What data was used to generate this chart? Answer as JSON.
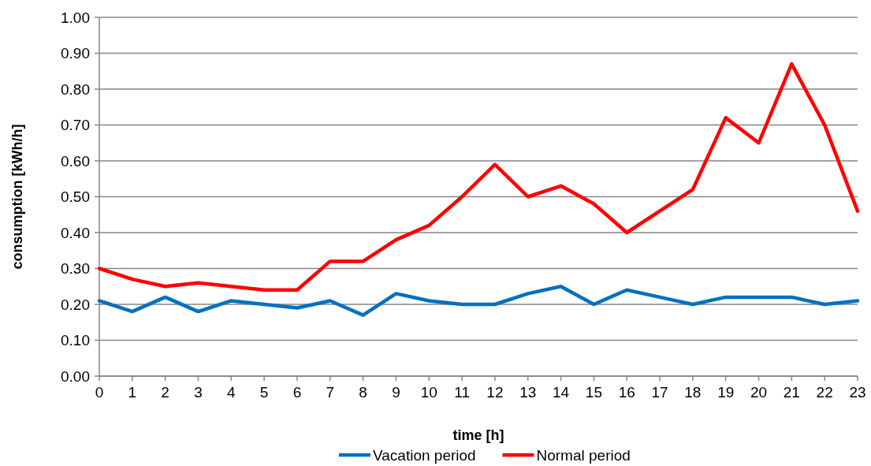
{
  "chart_data": {
    "type": "line",
    "xlabel": "time [h]",
    "ylabel": "consumption [kWh/h]",
    "x": [
      0,
      1,
      2,
      3,
      4,
      5,
      6,
      7,
      8,
      9,
      10,
      11,
      12,
      13,
      14,
      15,
      16,
      17,
      18,
      19,
      20,
      21,
      22,
      23
    ],
    "xlim": [
      0,
      23
    ],
    "xticks": [
      0,
      1,
      2,
      3,
      4,
      5,
      6,
      7,
      8,
      9,
      10,
      11,
      12,
      13,
      14,
      15,
      16,
      17,
      18,
      19,
      20,
      21,
      22,
      23
    ],
    "ylim": [
      0,
      1
    ],
    "yticks": [
      {
        "value": 0,
        "label": "0.00"
      },
      {
        "value": 0.1,
        "label": "0.10"
      },
      {
        "value": 0.2,
        "label": "0.20"
      },
      {
        "value": 0.3,
        "label": "0.30"
      },
      {
        "value": 0.4,
        "label": "0.40"
      },
      {
        "value": 0.5,
        "label": "0.50"
      },
      {
        "value": 0.6,
        "label": "0.60"
      },
      {
        "value": 0.7,
        "label": "0.70"
      },
      {
        "value": 0.8,
        "label": "0.80"
      },
      {
        "value": 0.9,
        "label": "0.90"
      },
      {
        "value": 1,
        "label": "1.00"
      }
    ],
    "grid": "y",
    "legend": "bottom",
    "marker": "none",
    "line_style": "solid",
    "series": [
      {
        "name": "Vacation period",
        "color": "#0070c0",
        "values": [
          0.21,
          0.18,
          0.22,
          0.18,
          0.21,
          0.2,
          0.19,
          0.21,
          0.17,
          0.23,
          0.21,
          0.2,
          0.2,
          0.23,
          0.25,
          0.2,
          0.24,
          0.22,
          0.2,
          0.22,
          0.22,
          0.22,
          0.2,
          0.21
        ]
      },
      {
        "name": "Normal period",
        "color": "#ff0000",
        "values": [
          0.3,
          0.27,
          0.25,
          0.26,
          0.25,
          0.24,
          0.24,
          0.32,
          0.32,
          0.38,
          0.42,
          0.5,
          0.59,
          0.5,
          0.53,
          0.48,
          0.4,
          0.46,
          0.52,
          0.72,
          0.65,
          0.87,
          0.7,
          0.46
        ]
      }
    ]
  }
}
